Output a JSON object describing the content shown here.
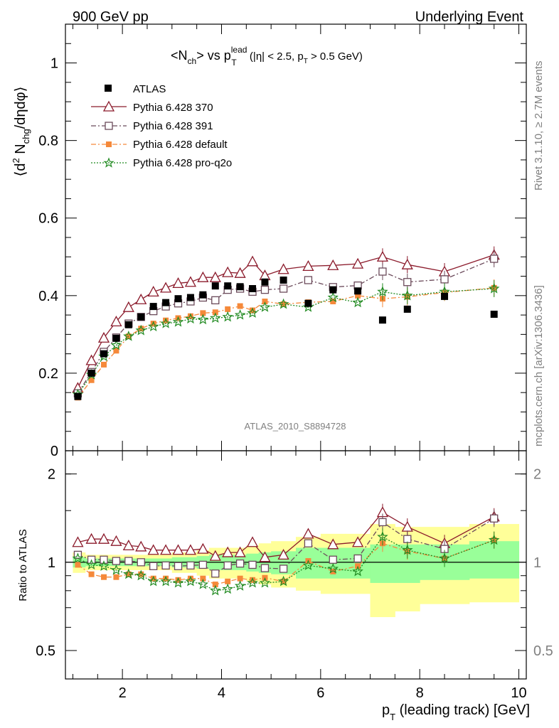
{
  "header": {
    "left": "900 GeV pp",
    "right": "Underlying Event"
  },
  "title": {
    "nch": "<N",
    "nch_sub": "ch",
    "vs": "> vs p",
    "pt_sup": "lead",
    "pt_sub": "T",
    "cuts": " (|η| < 2.5, p",
    "cuts_sub": "T",
    "cuts_end": " > 0.5 GeV)"
  },
  "ylabel": {
    "a": "⟨d",
    "a_sup": "2",
    "b": " N",
    "b_sub": "chg",
    "c": "/dηdφ⟩"
  },
  "ratio_ylabel": "Ratio to ATLAS",
  "xlabel": {
    "a": "p",
    "a_sub": "T",
    "b": " (leading track) [GeV]"
  },
  "analysis_tag": "ATLAS_2010_S8894728",
  "side_labels": {
    "rivet": "Rivet 3.1.10, ≥ 2.7M events",
    "mcplots": "mcplots.cern.ch [arXiv:1306.3436]"
  },
  "legend": [
    {
      "label": "ATLAS"
    },
    {
      "label": "Pythia 6.428 370"
    },
    {
      "label": "Pythia 6.428 391"
    },
    {
      "label": "Pythia 6.428 default"
    },
    {
      "label": "Pythia 6.428 pro-q2o"
    }
  ],
  "colors": {
    "atlas": "#000000",
    "p370": "#8b1a2b",
    "p391": "#6b4a5a",
    "default": "#f5893a",
    "proq2o": "#228b22",
    "band_inner": "#99ff99",
    "band_outer": "#ffff99"
  },
  "chart_data": [
    {
      "type": "scatter",
      "title": "<Nch> vs pT lead (|η| < 2.5, pT > 0.5 GeV)",
      "xlabel": "pT (leading track) [GeV]",
      "ylabel": "⟨d2 Nchg/dηdφ⟩",
      "xlim": [
        0.85,
        10.15
      ],
      "ylim": [
        0,
        1.1
      ],
      "y_ticks": [
        "0",
        "0.2",
        "0.4",
        "0.6",
        "0.8",
        "1"
      ],
      "x": [
        1.1,
        1.375,
        1.625,
        1.875,
        2.125,
        2.375,
        2.625,
        2.875,
        3.125,
        3.375,
        3.625,
        3.875,
        4.125,
        4.375,
        4.625,
        4.875,
        5.25,
        5.75,
        6.25,
        6.75,
        7.25,
        7.75,
        8.5,
        9.5
      ],
      "series": [
        {
          "name": "ATLAS",
          "values": [
            0.14,
            0.2,
            0.25,
            0.29,
            0.325,
            0.345,
            0.372,
            0.382,
            0.392,
            0.395,
            0.402,
            0.425,
            0.425,
            0.423,
            0.418,
            0.435,
            0.44,
            0.38,
            0.415,
            0.412,
            0.337,
            0.365,
            0.398,
            0.352
          ]
        },
        {
          "name": "Pythia 6.428 370",
          "values": [
            0.162,
            0.233,
            0.291,
            0.333,
            0.37,
            0.39,
            0.41,
            0.42,
            0.432,
            0.435,
            0.447,
            0.447,
            0.46,
            0.458,
            0.488,
            0.452,
            0.468,
            0.476,
            0.478,
            0.482,
            0.5,
            0.48,
            0.462,
            0.505
          ]
        },
        {
          "name": "Pythia 6.428 391",
          "values": [
            0.148,
            0.203,
            0.255,
            0.292,
            0.328,
            0.345,
            0.36,
            0.372,
            0.38,
            0.385,
            0.395,
            0.388,
            0.415,
            0.418,
            0.41,
            0.415,
            0.418,
            0.44,
            0.422,
            0.426,
            0.462,
            0.435,
            0.442,
            0.495
          ]
        },
        {
          "name": "Pythia 6.428 default",
          "values": [
            0.137,
            0.182,
            0.222,
            0.258,
            0.295,
            0.315,
            0.328,
            0.336,
            0.342,
            0.347,
            0.355,
            0.357,
            0.365,
            0.373,
            0.362,
            0.385,
            0.378,
            0.383,
            0.385,
            0.4,
            0.392,
            0.397,
            0.408,
            0.42
          ]
        },
        {
          "name": "Pythia 6.428 pro-q2o",
          "values": [
            0.145,
            0.196,
            0.243,
            0.272,
            0.295,
            0.31,
            0.32,
            0.328,
            0.332,
            0.34,
            0.338,
            0.342,
            0.345,
            0.35,
            0.355,
            0.37,
            0.378,
            0.37,
            0.395,
            0.382,
            0.41,
            0.4,
            0.41,
            0.418
          ]
        }
      ]
    },
    {
      "type": "scatter",
      "title": "",
      "xlabel": "pT (leading track) [GeV]",
      "ylabel": "Ratio to ATLAS",
      "xlim": [
        0.85,
        10.15
      ],
      "ylim": [
        0.4,
        2.4
      ],
      "scale": "log",
      "x_ticks": [
        "2",
        "4",
        "6",
        "8",
        "10"
      ],
      "y_ticks": [
        "0.5",
        "1",
        "2"
      ],
      "x": [
        1.1,
        1.375,
        1.625,
        1.875,
        2.125,
        2.375,
        2.625,
        2.875,
        3.125,
        3.375,
        3.625,
        3.875,
        4.125,
        4.375,
        4.625,
        4.875,
        5.25,
        5.75,
        6.25,
        6.75,
        7.25,
        7.75,
        8.5,
        9.5
      ],
      "series": [
        {
          "name": "Pythia 6.428 370",
          "values": [
            1.17,
            1.2,
            1.2,
            1.18,
            1.14,
            1.13,
            1.1,
            1.1,
            1.1,
            1.1,
            1.11,
            1.05,
            1.08,
            1.08,
            1.17,
            1.04,
            1.06,
            1.25,
            1.15,
            1.17,
            1.48,
            1.32,
            1.16,
            1.43
          ]
        },
        {
          "name": "Pythia 6.428 391",
          "values": [
            1.06,
            1.02,
            1.02,
            1.01,
            1.01,
            1.0,
            0.97,
            0.975,
            0.97,
            0.975,
            0.98,
            0.915,
            0.975,
            0.99,
            0.98,
            0.955,
            0.95,
            1.16,
            1.02,
            1.03,
            1.37,
            1.2,
            1.11,
            1.41
          ]
        },
        {
          "name": "Pythia 6.428 default",
          "values": [
            0.98,
            0.91,
            0.89,
            0.89,
            0.91,
            0.91,
            0.88,
            0.88,
            0.87,
            0.88,
            0.88,
            0.84,
            0.86,
            0.88,
            0.87,
            0.885,
            0.86,
            1.01,
            0.93,
            0.97,
            1.16,
            1.09,
            1.03,
            1.19
          ]
        },
        {
          "name": "Pythia 6.428 pro-q2o",
          "values": [
            1.03,
            0.98,
            0.97,
            0.94,
            0.91,
            0.9,
            0.86,
            0.86,
            0.85,
            0.86,
            0.84,
            0.8,
            0.81,
            0.83,
            0.85,
            0.85,
            0.86,
            0.975,
            0.95,
            0.93,
            1.22,
            1.1,
            1.03,
            1.19
          ]
        }
      ],
      "reference_bands": {
        "x_edges": [
          1.0,
          1.25,
          1.5,
          1.75,
          2.0,
          2.25,
          2.5,
          2.75,
          3.0,
          3.25,
          3.5,
          3.75,
          4.0,
          4.25,
          4.5,
          4.75,
          5.0,
          5.5,
          6.0,
          6.5,
          7.0,
          7.5,
          8.0,
          9.0,
          10.0
        ],
        "inner": [
          [
            0.96,
            1.04
          ],
          [
            0.97,
            1.03
          ],
          [
            0.97,
            1.03
          ],
          [
            0.97,
            1.03
          ],
          [
            0.97,
            1.03
          ],
          [
            0.97,
            1.03
          ],
          [
            0.97,
            1.03
          ],
          [
            0.97,
            1.03
          ],
          [
            0.96,
            1.04
          ],
          [
            0.96,
            1.04
          ],
          [
            0.95,
            1.05
          ],
          [
            0.94,
            1.06
          ],
          [
            0.94,
            1.06
          ],
          [
            0.94,
            1.06
          ],
          [
            0.93,
            1.07
          ],
          [
            0.92,
            1.08
          ],
          [
            0.91,
            1.09
          ],
          [
            0.88,
            1.12
          ],
          [
            0.88,
            1.12
          ],
          [
            0.88,
            1.12
          ],
          [
            0.85,
            1.15
          ],
          [
            0.85,
            1.15
          ],
          [
            0.87,
            1.15
          ],
          [
            0.88,
            1.18
          ]
        ],
        "outer": [
          [
            0.92,
            1.08
          ],
          [
            0.94,
            1.06
          ],
          [
            0.94,
            1.06
          ],
          [
            0.94,
            1.06
          ],
          [
            0.94,
            1.06
          ],
          [
            0.94,
            1.06
          ],
          [
            0.94,
            1.06
          ],
          [
            0.94,
            1.06
          ],
          [
            0.92,
            1.08
          ],
          [
            0.92,
            1.08
          ],
          [
            0.9,
            1.1
          ],
          [
            0.88,
            1.12
          ],
          [
            0.88,
            1.12
          ],
          [
            0.88,
            1.12
          ],
          [
            0.86,
            1.14
          ],
          [
            0.84,
            1.16
          ],
          [
            0.82,
            1.18
          ],
          [
            0.8,
            1.22
          ],
          [
            0.78,
            1.25
          ],
          [
            0.78,
            1.25
          ],
          [
            0.65,
            1.35
          ],
          [
            0.68,
            1.32
          ],
          [
            0.72,
            1.32
          ],
          [
            0.73,
            1.35
          ]
        ]
      }
    }
  ]
}
